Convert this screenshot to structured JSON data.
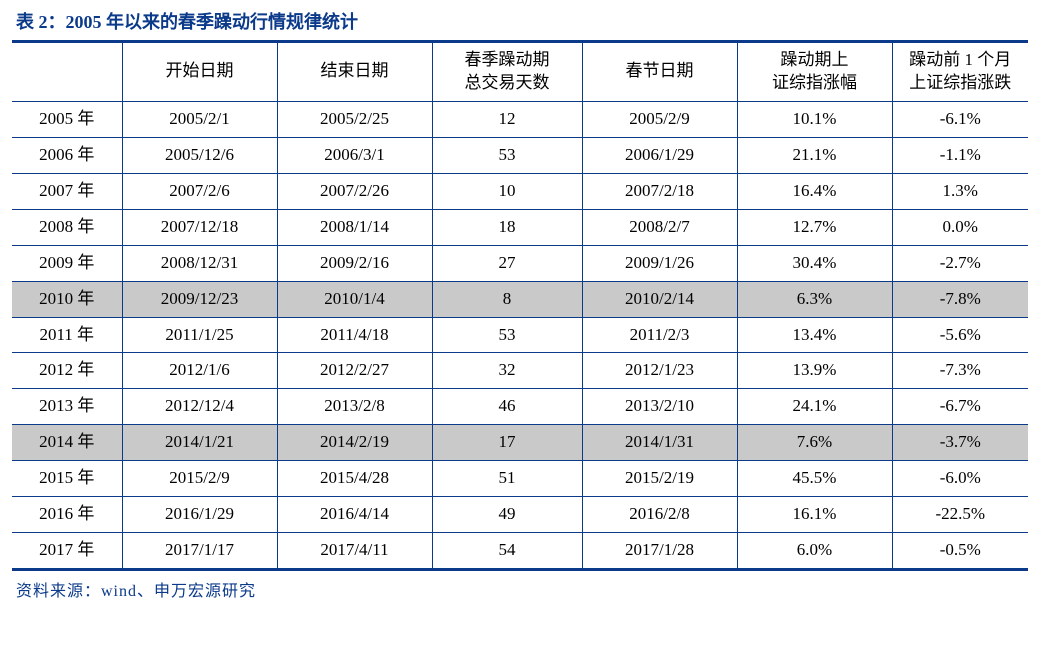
{
  "title": "表 2：2005 年以来的春季躁动行情规律统计",
  "source": "资料来源：wind、申万宏源研究",
  "table": {
    "columns": [
      "",
      "开始日期",
      "结束日期",
      "春季躁动期\n总交易天数",
      "春节日期",
      "躁动期上\n证综指涨幅",
      "躁动前 1 个月\n上证综指涨跌"
    ],
    "highlight_rows": [
      5,
      9
    ],
    "rows": [
      [
        "2005 年",
        "2005/2/1",
        "2005/2/25",
        "12",
        "2005/2/9",
        "10.1%",
        "-6.1%"
      ],
      [
        "2006 年",
        "2005/12/6",
        "2006/3/1",
        "53",
        "2006/1/29",
        "21.1%",
        "-1.1%"
      ],
      [
        "2007 年",
        "2007/2/6",
        "2007/2/26",
        "10",
        "2007/2/18",
        "16.4%",
        "1.3%"
      ],
      [
        "2008 年",
        "2007/12/18",
        "2008/1/14",
        "18",
        "2008/2/7",
        "12.7%",
        "0.0%"
      ],
      [
        "2009 年",
        "2008/12/31",
        "2009/2/16",
        "27",
        "2009/1/26",
        "30.4%",
        "-2.7%"
      ],
      [
        "2010 年",
        "2009/12/23",
        "2010/1/4",
        "8",
        "2010/2/14",
        "6.3%",
        "-7.8%"
      ],
      [
        "2011 年",
        "2011/1/25",
        "2011/4/18",
        "53",
        "2011/2/3",
        "13.4%",
        "-5.6%"
      ],
      [
        "2012 年",
        "2012/1/6",
        "2012/2/27",
        "32",
        "2012/1/23",
        "13.9%",
        "-7.3%"
      ],
      [
        "2013 年",
        "2012/12/4",
        "2013/2/8",
        "46",
        "2013/2/10",
        "24.1%",
        "-6.7%"
      ],
      [
        "2014 年",
        "2014/1/21",
        "2014/2/19",
        "17",
        "2014/1/31",
        "7.6%",
        "-3.7%"
      ],
      [
        "2015 年",
        "2015/2/9",
        "2015/4/28",
        "51",
        "2015/2/19",
        "45.5%",
        "-6.0%"
      ],
      [
        "2016 年",
        "2016/1/29",
        "2016/4/14",
        "49",
        "2016/2/8",
        "16.1%",
        "-22.5%"
      ],
      [
        "2017 年",
        "2017/1/17",
        "2017/4/11",
        "54",
        "2017/1/28",
        "6.0%",
        "-0.5%"
      ]
    ]
  },
  "style": {
    "brand_color": "#0b3a8a",
    "highlight_bg": "#c9c9c9",
    "background": "#ffffff",
    "text_color": "#000000",
    "title_fontsize": 18,
    "cell_fontsize": 17,
    "source_fontsize": 16
  }
}
